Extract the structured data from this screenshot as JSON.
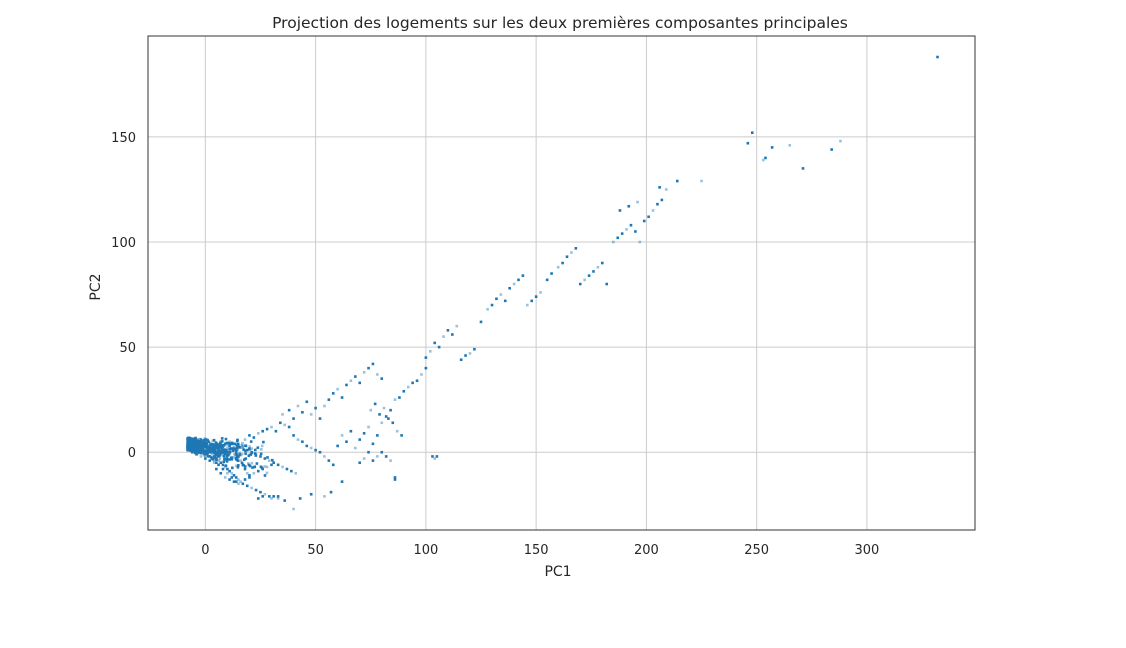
{
  "chart_data": {
    "type": "scatter",
    "title": "Projection des logements sur les deux premières composantes principales",
    "xlabel": "PC1",
    "ylabel": "PC2",
    "xlim": [
      -26,
      349
    ],
    "ylim": [
      -37,
      198
    ],
    "xticks": [
      0,
      50,
      100,
      150,
      200,
      250,
      300
    ],
    "yticks": [
      0,
      50,
      100,
      150
    ],
    "grid": true,
    "colors": {
      "points": "#1f77b4",
      "grid": "#cccccc",
      "frame": "#333333"
    },
    "points": [
      [
        -8,
        3
      ],
      [
        -7,
        2
      ],
      [
        -6,
        4
      ],
      [
        -5,
        1
      ],
      [
        -4,
        3
      ],
      [
        -3,
        2
      ],
      [
        -2,
        4
      ],
      [
        -1,
        1
      ],
      [
        0,
        3
      ],
      [
        1,
        2
      ],
      [
        2,
        0
      ],
      [
        3,
        -1
      ],
      [
        4,
        -2
      ],
      [
        5,
        -3
      ],
      [
        6,
        -4
      ],
      [
        7,
        -5
      ],
      [
        8,
        -6
      ],
      [
        9,
        -7
      ],
      [
        10,
        -8
      ],
      [
        11,
        -9
      ],
      [
        12,
        -10
      ],
      [
        13,
        -11
      ],
      [
        14,
        -12
      ],
      [
        15,
        -13
      ],
      [
        -6,
        0
      ],
      [
        -4,
        -1
      ],
      [
        -2,
        -2
      ],
      [
        0,
        -3
      ],
      [
        2,
        -4
      ],
      [
        4,
        -5
      ],
      [
        6,
        -6
      ],
      [
        8,
        -8
      ],
      [
        10,
        -10
      ],
      [
        12,
        -12
      ],
      [
        14,
        -14
      ],
      [
        16,
        -14
      ],
      [
        18,
        -13
      ],
      [
        20,
        -12
      ],
      [
        22,
        -10
      ],
      [
        24,
        -9
      ],
      [
        26,
        -8
      ],
      [
        28,
        -7
      ],
      [
        30,
        -6
      ],
      [
        0,
        0
      ],
      [
        1,
        -1
      ],
      [
        2,
        -2
      ],
      [
        3,
        -3
      ],
      [
        4,
        -4
      ],
      [
        5,
        -5
      ],
      [
        6,
        -2
      ],
      [
        7,
        -1
      ],
      [
        8,
        0
      ],
      [
        9,
        1
      ],
      [
        10,
        2
      ],
      [
        11,
        3
      ],
      [
        12,
        4
      ],
      [
        13,
        2
      ],
      [
        14,
        0
      ],
      [
        15,
        -2
      ],
      [
        16,
        -4
      ],
      [
        17,
        -6
      ],
      [
        18,
        -8
      ],
      [
        19,
        -10
      ],
      [
        20,
        -11
      ],
      [
        3,
        1
      ],
      [
        5,
        2
      ],
      [
        7,
        3
      ],
      [
        9,
        4
      ],
      [
        11,
        5
      ],
      [
        13,
        4
      ],
      [
        15,
        3
      ],
      [
        17,
        2
      ],
      [
        19,
        1
      ],
      [
        21,
        0
      ],
      [
        23,
        -1
      ],
      [
        25,
        -2
      ],
      [
        27,
        -3
      ],
      [
        29,
        -4
      ],
      [
        31,
        -5
      ],
      [
        33,
        -6
      ],
      [
        35,
        -7
      ],
      [
        37,
        -8
      ],
      [
        39,
        -9
      ],
      [
        41,
        -10
      ],
      [
        5,
        -8
      ],
      [
        7,
        -10
      ],
      [
        9,
        -12
      ],
      [
        11,
        -13
      ],
      [
        13,
        -14
      ],
      [
        15,
        -15
      ],
      [
        17,
        -15
      ],
      [
        19,
        -16
      ],
      [
        21,
        -17
      ],
      [
        23,
        -18
      ],
      [
        25,
        -19
      ],
      [
        27,
        -20
      ],
      [
        29,
        -21
      ],
      [
        31,
        -21
      ],
      [
        33,
        -22
      ],
      [
        24,
        -22
      ],
      [
        26,
        -21
      ],
      [
        30,
        -22
      ],
      [
        33,
        -21
      ],
      [
        36,
        -23
      ],
      [
        40,
        -27
      ],
      [
        43,
        -22
      ],
      [
        48,
        -20
      ],
      [
        54,
        -21
      ],
      [
        57,
        -19
      ],
      [
        62,
        -14
      ],
      [
        18,
        6
      ],
      [
        20,
        8
      ],
      [
        22,
        7
      ],
      [
        24,
        9
      ],
      [
        26,
        10
      ],
      [
        28,
        11
      ],
      [
        30,
        12
      ],
      [
        32,
        10
      ],
      [
        34,
        14
      ],
      [
        36,
        13
      ],
      [
        38,
        12
      ],
      [
        40,
        8
      ],
      [
        42,
        6
      ],
      [
        44,
        5
      ],
      [
        46,
        3
      ],
      [
        48,
        2
      ],
      [
        50,
        1
      ],
      [
        52,
        0
      ],
      [
        54,
        -2
      ],
      [
        56,
        -4
      ],
      [
        58,
        -6
      ],
      [
        35,
        18
      ],
      [
        38,
        20
      ],
      [
        40,
        16
      ],
      [
        42,
        22
      ],
      [
        44,
        19
      ],
      [
        46,
        24
      ],
      [
        48,
        18
      ],
      [
        50,
        21
      ],
      [
        52,
        16
      ],
      [
        54,
        22
      ],
      [
        56,
        25
      ],
      [
        58,
        28
      ],
      [
        60,
        30
      ],
      [
        62,
        26
      ],
      [
        64,
        32
      ],
      [
        66,
        34
      ],
      [
        68,
        36
      ],
      [
        70,
        33
      ],
      [
        72,
        38
      ],
      [
        74,
        40
      ],
      [
        76,
        42
      ],
      [
        78,
        37
      ],
      [
        80,
        35
      ],
      [
        60,
        3
      ],
      [
        62,
        8
      ],
      [
        64,
        5
      ],
      [
        66,
        10
      ],
      [
        68,
        2
      ],
      [
        70,
        6
      ],
      [
        72,
        9
      ],
      [
        74,
        12
      ],
      [
        76,
        4
      ],
      [
        78,
        8
      ],
      [
        80,
        14
      ],
      [
        82,
        17
      ],
      [
        84,
        20
      ],
      [
        86,
        25
      ],
      [
        88,
        26
      ],
      [
        90,
        29
      ],
      [
        92,
        31
      ],
      [
        94,
        33
      ],
      [
        96,
        34
      ],
      [
        98,
        37
      ],
      [
        100,
        40
      ],
      [
        70,
        -5
      ],
      [
        72,
        -3
      ],
      [
        74,
        0
      ],
      [
        76,
        -4
      ],
      [
        78,
        -2
      ],
      [
        80,
        0
      ],
      [
        82,
        -2
      ],
      [
        84,
        -4
      ],
      [
        86,
        -12
      ],
      [
        86,
        -13
      ],
      [
        75,
        20
      ],
      [
        77,
        23
      ],
      [
        79,
        18
      ],
      [
        81,
        21
      ],
      [
        83,
        16
      ],
      [
        85,
        14
      ],
      [
        87,
        10
      ],
      [
        89,
        8
      ],
      [
        100,
        45
      ],
      [
        102,
        48
      ],
      [
        104,
        52
      ],
      [
        106,
        50
      ],
      [
        108,
        55
      ],
      [
        110,
        58
      ],
      [
        112,
        56
      ],
      [
        114,
        60
      ],
      [
        116,
        44
      ],
      [
        118,
        46
      ],
      [
        120,
        47
      ],
      [
        122,
        49
      ],
      [
        103,
        -2
      ],
      [
        104,
        -3
      ],
      [
        105,
        -2
      ],
      [
        125,
        62
      ],
      [
        128,
        68
      ],
      [
        130,
        70
      ],
      [
        132,
        73
      ],
      [
        134,
        75
      ],
      [
        136,
        72
      ],
      [
        138,
        78
      ],
      [
        140,
        80
      ],
      [
        142,
        82
      ],
      [
        144,
        84
      ],
      [
        146,
        70
      ],
      [
        148,
        72
      ],
      [
        150,
        74
      ],
      [
        152,
        76
      ],
      [
        155,
        82
      ],
      [
        157,
        85
      ],
      [
        160,
        88
      ],
      [
        162,
        90
      ],
      [
        164,
        93
      ],
      [
        166,
        95
      ],
      [
        168,
        97
      ],
      [
        170,
        80
      ],
      [
        172,
        82
      ],
      [
        174,
        84
      ],
      [
        176,
        86
      ],
      [
        178,
        88
      ],
      [
        180,
        90
      ],
      [
        182,
        80
      ],
      [
        185,
        100
      ],
      [
        187,
        102
      ],
      [
        189,
        104
      ],
      [
        191,
        106
      ],
      [
        193,
        108
      ],
      [
        195,
        105
      ],
      [
        197,
        100
      ],
      [
        199,
        110
      ],
      [
        201,
        112
      ],
      [
        203,
        115
      ],
      [
        205,
        118
      ],
      [
        207,
        120
      ],
      [
        209,
        125
      ],
      [
        188,
        115
      ],
      [
        192,
        117
      ],
      [
        196,
        119
      ],
      [
        206,
        126
      ],
      [
        214,
        129
      ],
      [
        225,
        129
      ],
      [
        246,
        147
      ],
      [
        248,
        152
      ],
      [
        253,
        139
      ],
      [
        254,
        140
      ],
      [
        257,
        145
      ],
      [
        265,
        146
      ],
      [
        271,
        135
      ],
      [
        284,
        144
      ],
      [
        288,
        148
      ],
      [
        332,
        188
      ]
    ]
  }
}
